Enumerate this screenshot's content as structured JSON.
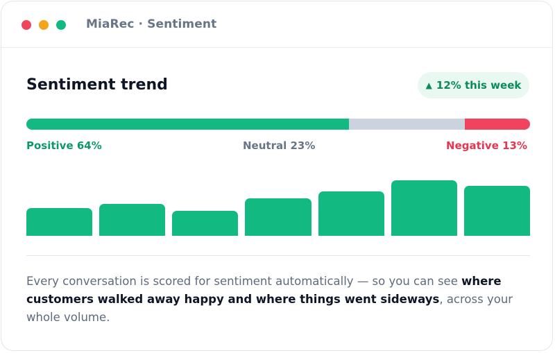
{
  "window": {
    "title": "MiaRec · Sentiment",
    "controls": [
      {
        "name": "close",
        "color": "#f0435d"
      },
      {
        "name": "minimize",
        "color": "#f5a31a"
      },
      {
        "name": "maximize",
        "color": "#12b981"
      }
    ]
  },
  "card": {
    "title": "Sentiment trend",
    "badge": {
      "arrow": "▲",
      "text": "12% this week",
      "color": "#0b8a5c",
      "background": "#e9f9f2"
    }
  },
  "sentiment_split": {
    "segments": [
      {
        "key": "positive",
        "label": "Positive 64%",
        "percent": 64,
        "color": "#12b981"
      },
      {
        "key": "neutral",
        "label": "Neutral 23%",
        "percent": 23,
        "color": "#cad3de"
      },
      {
        "key": "negative",
        "label": "Negative 13%",
        "percent": 13,
        "color": "#f0435d"
      }
    ]
  },
  "chart_data": {
    "type": "bar",
    "categories": [
      "",
      "",
      "",
      "",
      "",
      "",
      ""
    ],
    "values": [
      43,
      50,
      39,
      59,
      70,
      87,
      78
    ],
    "ylim": [
      0,
      100
    ],
    "title": "",
    "xlabel": "",
    "ylabel": "",
    "grid": false,
    "color": "#12b981"
  },
  "description": {
    "part1": "Every conversation is scored for sentiment automatically — so you can see ",
    "emphasis": "where customers walked away happy and where things went sideways",
    "part2": ", across your whole volume."
  }
}
